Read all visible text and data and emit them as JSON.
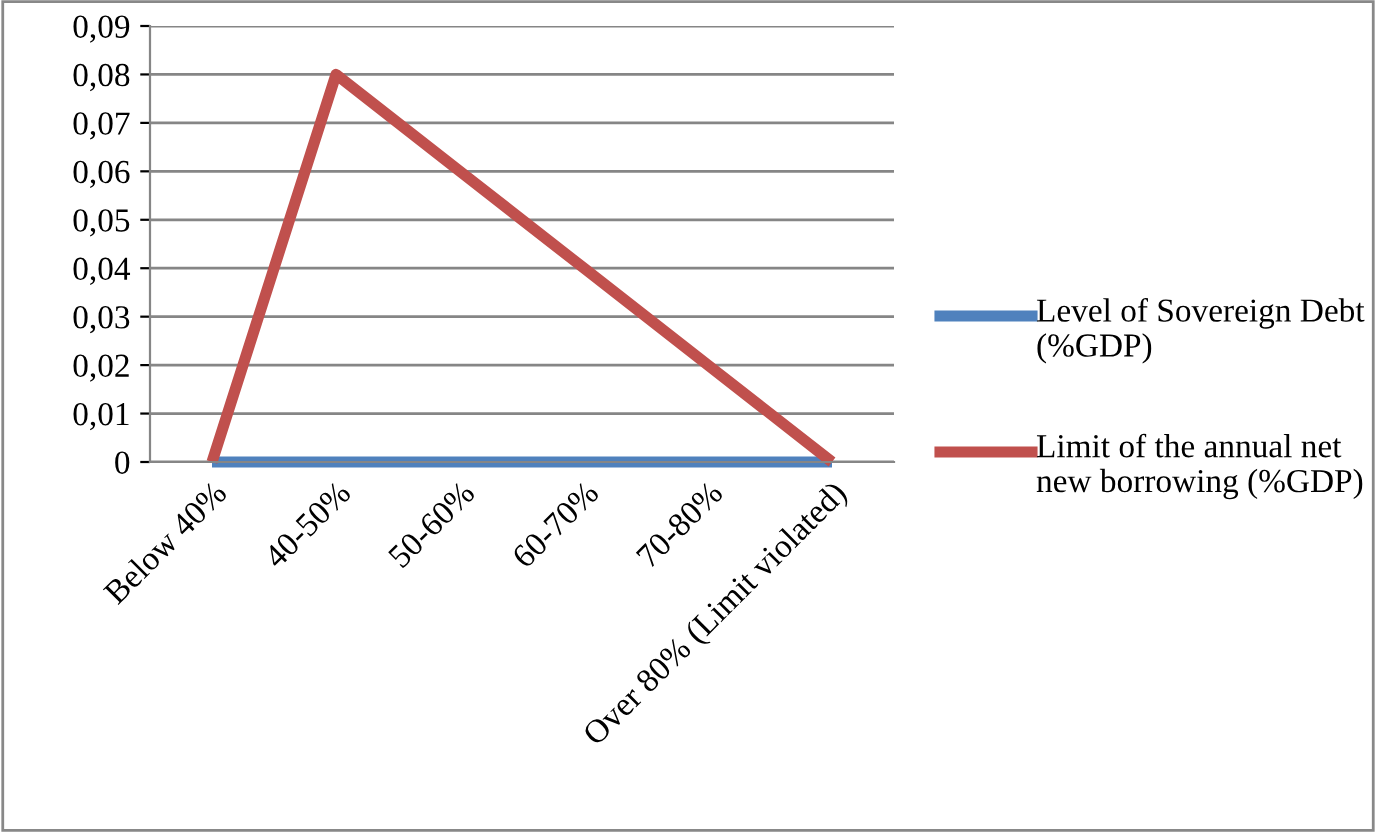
{
  "chart_data": {
    "type": "line",
    "categories": [
      "Below 40%",
      "40-50%",
      "50-60%",
      "60-70%",
      "70-80%",
      "Over 80% (Limit violated)"
    ],
    "series": [
      {
        "name": "Level of Sovereign Debt (%GDP)",
        "color": "#4f81bd",
        "values": [
          0,
          0,
          0,
          0,
          0,
          0
        ]
      },
      {
        "name": "Limit of the annual net new borrowing (%GDP)",
        "color": "#c0504d",
        "values": [
          0,
          0.08,
          0.06,
          0.04,
          0.02,
          0
        ]
      }
    ],
    "ylim": [
      0,
      0.09
    ],
    "yticks": [
      0,
      {
        "value": 0.01,
        "label": "0,01"
      },
      {
        "value": 0.02,
        "label": "0,02"
      },
      {
        "value": 0.03,
        "label": "0,03"
      },
      {
        "value": 0.04,
        "label": "0,04"
      },
      {
        "value": 0.05,
        "label": "0,05"
      },
      {
        "value": 0.06,
        "label": "0,06"
      },
      {
        "value": 0.07,
        "label": "0,07"
      },
      {
        "value": 0.08,
        "label": "0,08"
      },
      {
        "value": 0.09,
        "label": "0,09"
      }
    ],
    "grid": "y",
    "legend": "right",
    "marker": "none",
    "line_style": "solid"
  }
}
